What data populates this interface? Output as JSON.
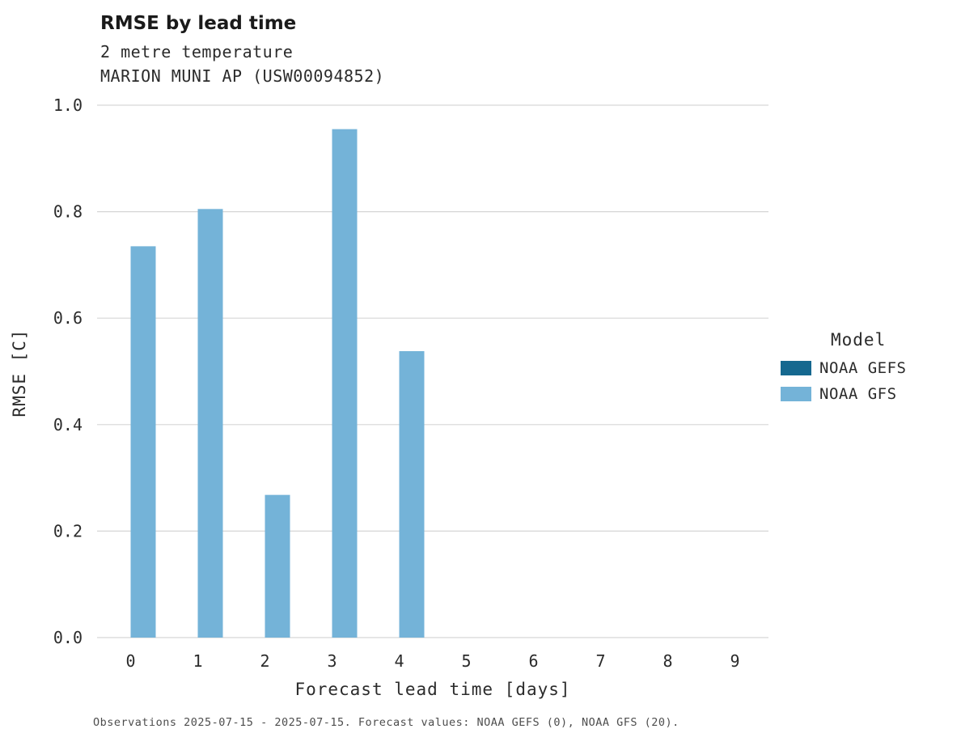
{
  "header": {
    "title": "RMSE by lead time",
    "subtitle_line1": "2 metre temperature",
    "subtitle_line2": "MARION MUNI AP (USW00094852)"
  },
  "footer": {
    "caption": "Observations 2025-07-15 - 2025-07-15. Forecast values: NOAA GEFS (0), NOAA GFS (20)."
  },
  "legend": {
    "title": "Model",
    "entries": [
      {
        "label": "NOAA GEFS",
        "color": "#15688f"
      },
      {
        "label": "NOAA GFS",
        "color": "#74b3d8"
      }
    ]
  },
  "colors": {
    "gridline": "#d6d6d6",
    "text": "#2b2b2b",
    "background": "#ffffff"
  },
  "chart_data": {
    "type": "bar",
    "title": "RMSE by lead time",
    "subtitle": "2 metre temperature — MARION MUNI AP (USW00094852)",
    "xlabel": "Forecast lead time [days]",
    "ylabel": "RMSE [C]",
    "categories": [
      0,
      1,
      2,
      3,
      4,
      5,
      6,
      7,
      8,
      9
    ],
    "xtick_labels": [
      "0",
      "1",
      "2",
      "3",
      "4",
      "5",
      "6",
      "7",
      "8",
      "9"
    ],
    "series": [
      {
        "name": "NOAA GEFS",
        "color": "#15688f",
        "values": [
          null,
          null,
          null,
          null,
          null,
          null,
          null,
          null,
          null,
          null
        ]
      },
      {
        "name": "NOAA GFS",
        "color": "#74b3d8",
        "values": [
          0.735,
          0.805,
          0.268,
          0.955,
          0.538,
          null,
          null,
          null,
          null,
          null
        ]
      }
    ],
    "ylim": [
      0.0,
      1.0
    ],
    "yticks": [
      0.0,
      0.2,
      0.4,
      0.6,
      0.8,
      1.0
    ],
    "ytick_labels": [
      "0.0",
      "0.2",
      "0.4",
      "0.6",
      "0.8",
      "1.0"
    ],
    "grid": true,
    "legend_position": "right"
  }
}
